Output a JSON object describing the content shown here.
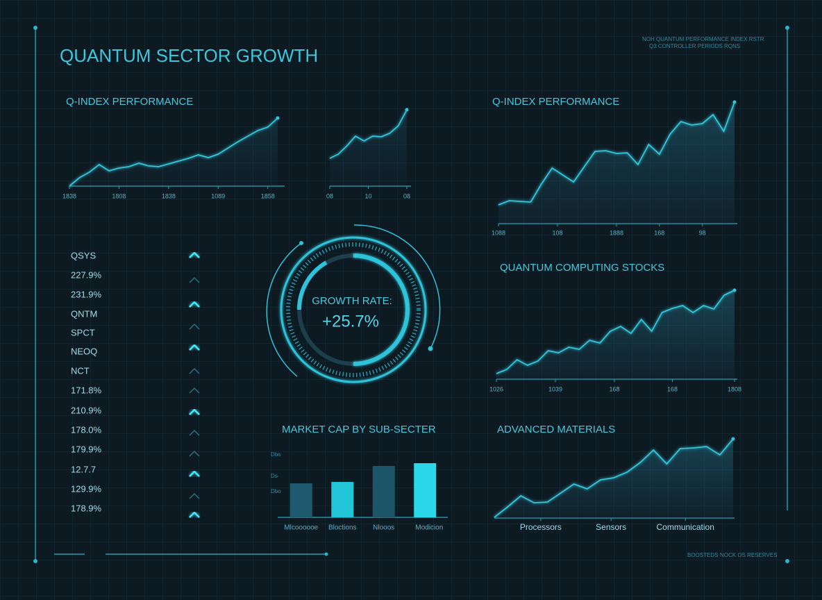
{
  "title": "QUANTUM SECTOR GROWTH",
  "header_note": [
    "NOH QUANTUM PERFORMANCE INDEX  RSTR",
    "Q3 CONTROLLER PERIODS  RQNS"
  ],
  "footer_note": [
    "BOOSTEDS",
    "NOCK OS RESERVES"
  ],
  "chart_data": [
    {
      "type": "line",
      "title": "Q-INDEX PERFORMANCE",
      "values": [
        0,
        12,
        20,
        31,
        22,
        26,
        28,
        33,
        29,
        28,
        32,
        36,
        40,
        45,
        41,
        46,
        55,
        64,
        72,
        80,
        85,
        98
      ],
      "xlim": [
        0,
        21
      ],
      "ylim": [
        0,
        100
      ],
      "color": "#34c6dc",
      "xticks": [
        {
          "value": 0,
          "label": "1838"
        },
        {
          "value": 5,
          "label": "1808"
        },
        {
          "value": 10,
          "label": "1838"
        },
        {
          "value": 15,
          "label": "1089"
        },
        {
          "value": 20,
          "label": "1858"
        }
      ]
    },
    {
      "type": "line",
      "values": [
        40,
        46,
        58,
        72,
        65,
        72,
        71,
        76,
        87,
        110
      ],
      "xlim": [
        0,
        9
      ],
      "ylim": [
        0,
        120
      ],
      "color": "#34c6dc",
      "xticks": [
        {
          "value": 0,
          "label": "08"
        },
        {
          "value": 4.5,
          "label": "10"
        },
        {
          "value": 9,
          "label": "08"
        }
      ]
    },
    {
      "type": "area",
      "title": "Q-INDEX PERFORMANCE",
      "values": [
        27,
        33,
        32,
        31,
        57,
        80,
        70,
        60,
        82,
        104,
        105,
        101,
        102,
        85,
        114,
        100,
        129,
        147,
        142,
        144,
        157,
        133,
        175
      ],
      "xlim": [
        0,
        22
      ],
      "ylim": [
        0,
        180
      ],
      "color": "#34c6dc",
      "xticks": [
        {
          "value": 0,
          "label": "1088"
        },
        {
          "value": 5.5,
          "label": "108"
        },
        {
          "value": 11,
          "label": "1888"
        },
        {
          "value": 15,
          "label": "168"
        },
        {
          "value": 19,
          "label": "98"
        }
      ]
    },
    {
      "type": "area",
      "title": "QUANTUM COMPUTING STOCKS",
      "values": [
        8,
        14,
        28,
        20,
        26,
        41,
        38,
        46,
        43,
        56,
        52,
        69,
        76,
        66,
        86,
        69,
        96,
        102,
        106,
        96,
        106,
        101,
        121,
        128
      ],
      "xlim": [
        0,
        23
      ],
      "ylim": [
        0,
        140
      ],
      "color": "#34c6dc",
      "xticks": [
        {
          "value": 0,
          "label": "1026"
        },
        {
          "value": 5.7,
          "label": "1039"
        },
        {
          "value": 11.4,
          "label": "168"
        },
        {
          "value": 17,
          "label": "168"
        },
        {
          "value": 23,
          "label": "1808"
        }
      ]
    },
    {
      "type": "bar",
      "title": "MARKET CAP BY SUB-SECTER",
      "categories": [
        "Mlcoooooe",
        "Bloctions",
        "Nlooos",
        "Modicion"
      ],
      "values": [
        49,
        51,
        74,
        78
      ],
      "colors": [
        "#1e5a6d",
        "#22c4d8",
        "#1d5568",
        "#2ad8ea"
      ],
      "ylim": [
        0,
        100
      ],
      "yticks": [
        {
          "value": 90,
          "label": "Dbs"
        },
        {
          "value": 59,
          "label": "Ds"
        },
        {
          "value": 37,
          "label": "Dbo"
        }
      ]
    },
    {
      "type": "area",
      "title": "ADVANCED MATERIALS",
      "values": [
        1,
        16,
        32,
        22,
        23,
        36,
        49,
        42,
        55,
        58,
        66,
        80,
        98,
        78,
        100,
        101,
        103,
        91,
        114
      ],
      "xlim": [
        0,
        18
      ],
      "ylim": [
        0,
        120
      ],
      "color": "#34c6dc",
      "xticks": [
        {
          "value": 3.5,
          "label": "Processors"
        },
        {
          "value": 8.8,
          "label": "Sensors"
        },
        {
          "value": 14.4,
          "label": "Communication"
        }
      ]
    }
  ],
  "gauge": {
    "label": "GROWTH RATE:",
    "value": 25.7,
    "value_label": "+25.7%"
  },
  "tickers": {
    "items": [
      "QSYS",
      "227.9%",
      "231.9%",
      "QNTM",
      "SPCT",
      "NEOQ",
      "NCT",
      "171.8%",
      "210.9%",
      "178.0%",
      "179.9%",
      "12.7.7",
      "129.9%",
      "178.9%"
    ],
    "arrows": [
      "bright",
      "dim",
      "bright",
      "dim",
      "bright",
      "dim",
      "dim",
      "bright",
      "dim",
      "dim",
      "bright",
      "dim",
      "bright"
    ]
  }
}
